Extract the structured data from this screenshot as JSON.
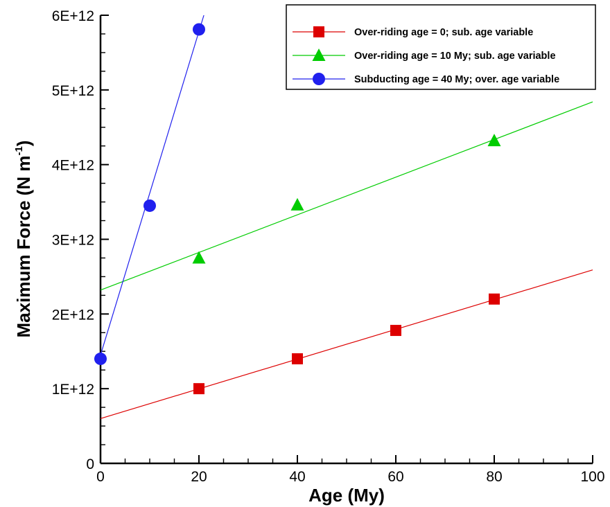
{
  "chart_data": {
    "type": "scatter",
    "xlabel": "Age (My)",
    "ylabel": "Maximum Force (N m",
    "ylabel_sup": "-1",
    "ylabel_close": ")",
    "xlim": [
      0,
      100
    ],
    "ylim": [
      0,
      6000000000000
    ],
    "x_ticks": [
      0,
      20,
      40,
      60,
      80,
      100
    ],
    "x_tick_labels": [
      "0",
      "20",
      "40",
      "60",
      "80",
      "100"
    ],
    "y_ticks": [
      0,
      1000000000000,
      2000000000000,
      3000000000000,
      4000000000000,
      5000000000000,
      6000000000000
    ],
    "y_tick_labels": [
      "0",
      "1E+12",
      "2E+12",
      "3E+12",
      "4E+12",
      "5E+12",
      "6E+12"
    ],
    "grid": false,
    "legend_position": "top-right",
    "series": [
      {
        "name": "Over-riding age = 0;  sub. age variable",
        "color": "#dd0000",
        "marker": "square",
        "points": [
          [
            20,
            1000000000000
          ],
          [
            40,
            1400000000000
          ],
          [
            60,
            1780000000000
          ],
          [
            80,
            2200000000000
          ]
        ],
        "fit_line": [
          [
            0,
            600000000000
          ],
          [
            100,
            2590000000000
          ]
        ]
      },
      {
        "name": "Over-riding age = 10 My; sub. age variable",
        "color": "#00cc00",
        "marker": "triangle",
        "points": [
          [
            20,
            2750000000000
          ],
          [
            40,
            3460000000000
          ],
          [
            80,
            4320000000000
          ]
        ],
        "fit_line": [
          [
            0,
            2320000000000
          ],
          [
            100,
            4840000000000
          ]
        ]
      },
      {
        "name": "Subducting age = 40 My; over. age variable",
        "color": "#2020ee",
        "marker": "circle",
        "points": [
          [
            0,
            1400000000000
          ],
          [
            10,
            3450000000000
          ],
          [
            20,
            5810000000000
          ]
        ],
        "fit_line": [
          [
            0,
            1450000000000
          ],
          [
            21,
            6000000000000
          ]
        ]
      }
    ]
  }
}
